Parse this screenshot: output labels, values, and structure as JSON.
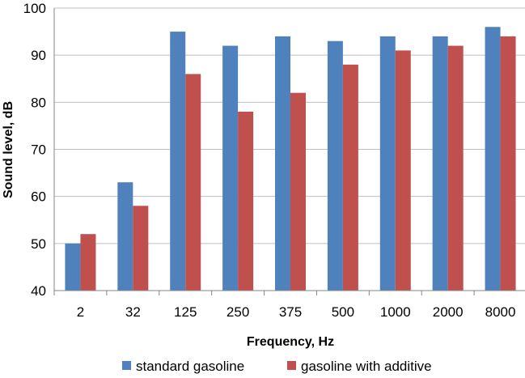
{
  "chart_data": {
    "type": "bar",
    "categories": [
      "2",
      "32",
      "125",
      "250",
      "375",
      "500",
      "1000",
      "2000",
      "8000"
    ],
    "series": [
      {
        "name": "standard gasoline",
        "values": [
          50,
          63,
          95,
          92,
          94,
          93,
          94,
          94,
          96
        ]
      },
      {
        "name": "gasoline with additive",
        "values": [
          52,
          58,
          86,
          78,
          82,
          88,
          91,
          92,
          94
        ]
      }
    ],
    "title": "",
    "xlabel": "Frequency, Hz",
    "ylabel": "Sound level, dB",
    "ylim": [
      40,
      100
    ],
    "yticks": [
      "40",
      "50",
      "60",
      "70",
      "80",
      "90",
      "100"
    ],
    "grid": true,
    "legend_position": "bottom",
    "colors": {
      "standard gasoline": "#4f81bd",
      "gasoline with additive": "#c0504d",
      "grid": "#bfbfbf",
      "axis": "#868686"
    }
  }
}
